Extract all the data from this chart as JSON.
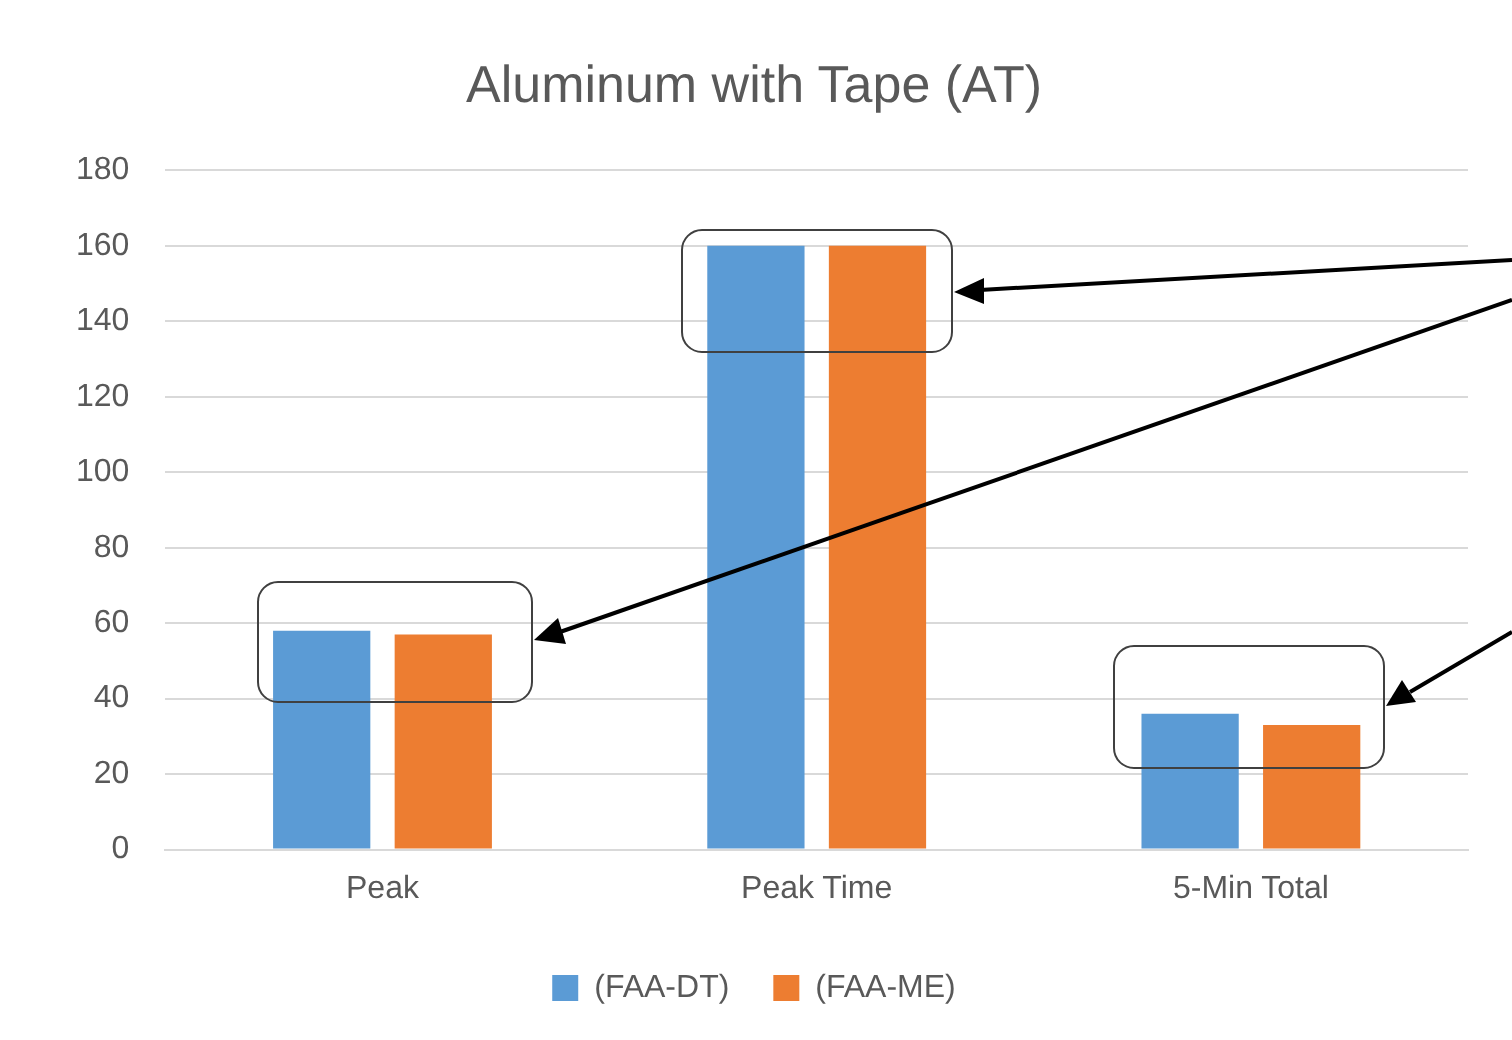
{
  "chart_data": {
    "type": "bar",
    "title": "Aluminum with Tape (AT)",
    "categories": [
      "Peak",
      "Peak Time",
      "5-Min Total"
    ],
    "series": [
      {
        "name": "(FAA-DT)",
        "color": "#5b9bd5",
        "values": [
          58,
          160,
          36
        ]
      },
      {
        "name": "(FAA-ME)",
        "color": "#ed7d31",
        "values": [
          57,
          160,
          33
        ]
      }
    ],
    "ylim": [
      0,
      180
    ],
    "yticks": [
      0,
      20,
      40,
      60,
      80,
      100,
      120,
      140,
      160,
      180
    ],
    "grid": "y",
    "legend": "bottom"
  }
}
